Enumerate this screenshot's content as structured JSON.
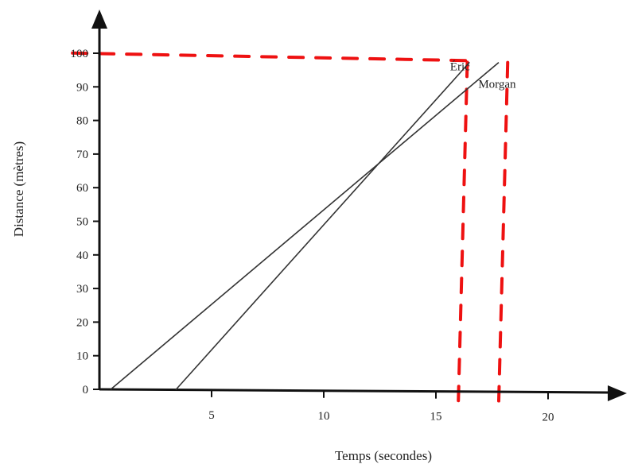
{
  "chart_data": {
    "type": "line",
    "title": "",
    "xlabel": "Temps (secondes)",
    "ylabel": "Distance (mètres)",
    "xlim": [
      0,
      21.5
    ],
    "ylim": [
      0,
      100
    ],
    "x_ticks": [
      5,
      10,
      15,
      20
    ],
    "y_ticks": [
      0,
      10,
      20,
      30,
      40,
      50,
      60,
      70,
      80,
      90,
      100
    ],
    "grid": false,
    "series": [
      {
        "name": "Éric",
        "x": [
          3.4,
          16.5
        ],
        "y": [
          0,
          98
        ],
        "color": "#333333"
      },
      {
        "name": "Morgan",
        "x": [
          0.5,
          17.8
        ],
        "y": [
          0,
          98
        ],
        "color": "#333333"
      }
    ],
    "annotations": [
      {
        "kind": "dashed-horizontal",
        "x": [
          -1.2,
          16.4
        ],
        "y": [
          100,
          98.5
        ],
        "color": "#ee1111"
      },
      {
        "kind": "dashed-vertical",
        "x": [
          16.4,
          16.0
        ],
        "y": [
          98,
          -3
        ],
        "color": "#ee1111"
      },
      {
        "kind": "dashed-vertical",
        "x": [
          18.2,
          17.8
        ],
        "y": [
          98,
          -3
        ],
        "color": "#ee1111"
      }
    ]
  }
}
